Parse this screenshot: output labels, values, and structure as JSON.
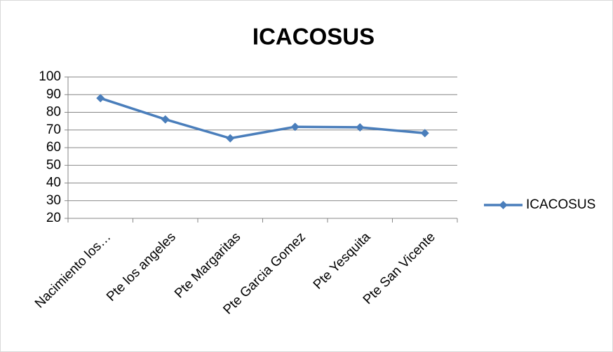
{
  "chart_data": {
    "type": "line",
    "title": "ICACOSUS",
    "categories": [
      "Nacimiento los…",
      "Pte los angeles",
      "Pte Margaritas",
      "Pte Garcia Gomez",
      "Pte Yesquita",
      "Pte San Vicente"
    ],
    "series": [
      {
        "name": "ICACOSUS",
        "color": "#4a7ebb",
        "values": [
          88,
          76,
          65.3,
          71.8,
          71.5,
          68.2
        ]
      }
    ],
    "ylim": [
      20,
      100
    ],
    "yticks": [
      20,
      30,
      40,
      50,
      60,
      70,
      80,
      90,
      100
    ],
    "grid": true,
    "legend": "right"
  }
}
